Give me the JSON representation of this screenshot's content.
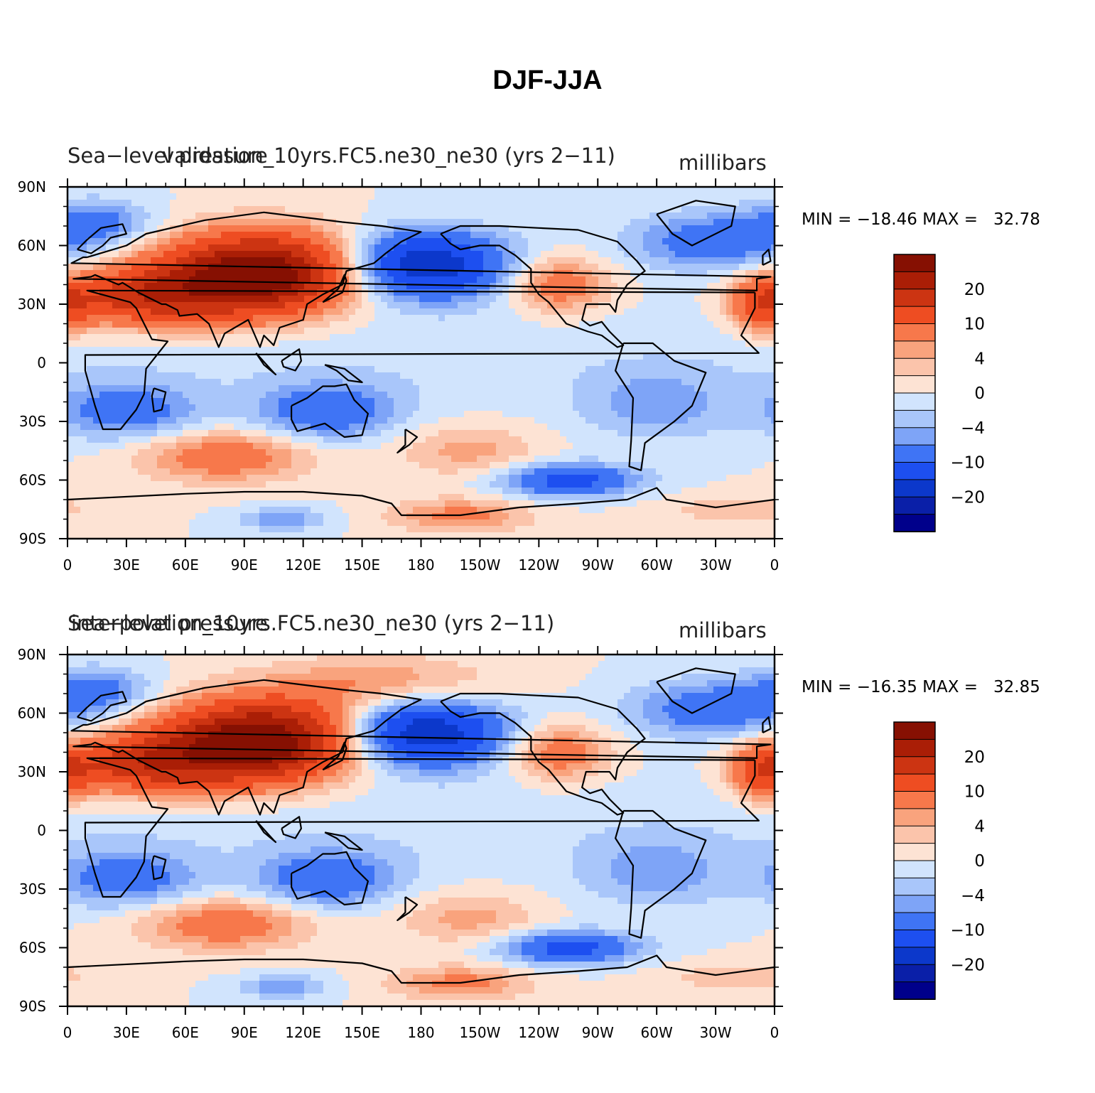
{
  "figure_title": "DJF-JJA",
  "colormap": [
    "#00008b",
    "#0a1fa8",
    "#0c38cb",
    "#1d4ff0",
    "#3f74f5",
    "#7ea4f7",
    "#a9c6fa",
    "#d1e4fd",
    "#fde3d4",
    "#fbc4ab",
    "#f9a37d",
    "#f7784b",
    "#ee4d22",
    "#cc3412",
    "#aa1e06",
    "#861002"
  ],
  "colorbar_labels": [
    "20",
    "10",
    "4",
    "0",
    "−4",
    "−10",
    "−20"
  ],
  "x_ticks": [
    "0",
    "30E",
    "60E",
    "90E",
    "120E",
    "150E",
    "180",
    "150W",
    "120W",
    "90W",
    "60W",
    "30W",
    "0"
  ],
  "y_ticks": [
    "90N",
    "60N",
    "30N",
    "0",
    "30S",
    "60S",
    "90S"
  ],
  "panels": [
    {
      "left_title": "Sea−level pressure",
      "center_title": "validation_10yrs.FC5.ne30_ne30 (yrs 2−11)",
      "units": "millibars",
      "min_max": "MIN = −18.46 MAX =   32.78"
    },
    {
      "left_title": "Sea−level pressure",
      "center_title": "interpolation_10yrs.FC5.ne30_ne30 (yrs 2−11)",
      "units": "millibars",
      "min_max": "MIN = −16.35 MAX =   32.85"
    }
  ]
}
